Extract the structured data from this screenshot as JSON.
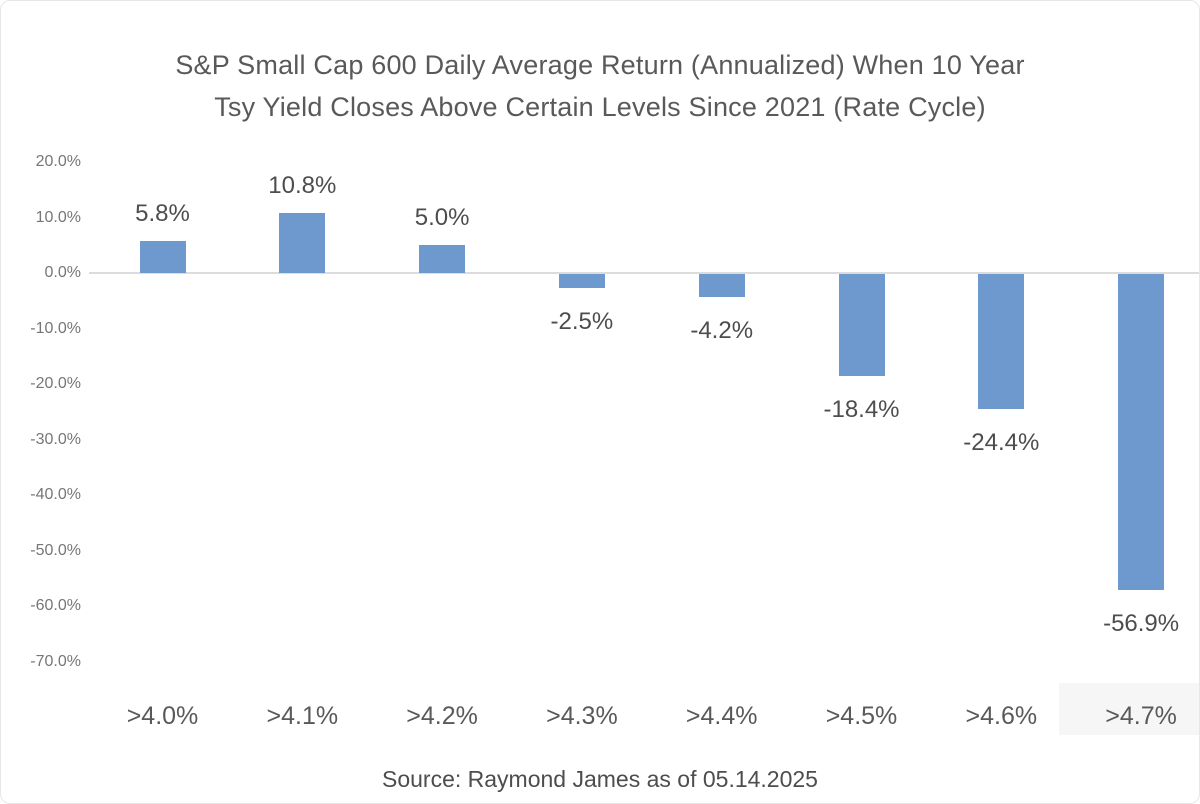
{
  "chart_data": {
    "type": "bar",
    "title": "S&P Small Cap 600 Daily Average Return (Annualized) When 10 Year\nTsy Yield Closes Above Certain Levels Since 2021 (Rate Cycle)",
    "categories": [
      ">4.0%",
      ">4.1%",
      ">4.2%",
      ">4.3%",
      ">4.4%",
      ">4.5%",
      ">4.6%",
      ">4.7%"
    ],
    "values": [
      5.8,
      10.8,
      5.0,
      -2.5,
      -4.2,
      -18.4,
      -24.4,
      -56.9
    ],
    "value_labels": [
      "5.8%",
      "10.8%",
      "5.0%",
      "-2.5%",
      "-4.2%",
      "-18.4%",
      "-24.4%",
      "-56.9%"
    ],
    "xlabel": "",
    "ylabel": "",
    "ylim": [
      -70,
      20
    ],
    "y_ticks": [
      {
        "label": "20.0%",
        "value": 20
      },
      {
        "label": "10.0%",
        "value": 10
      },
      {
        "label": "0.0%",
        "value": 0
      },
      {
        "label": "-10.0%",
        "value": -10
      },
      {
        "label": "-20.0%",
        "value": -20
      },
      {
        "label": "-30.0%",
        "value": -30
      },
      {
        "label": "-40.0%",
        "value": -40
      },
      {
        "label": "-50.0%",
        "value": -50
      },
      {
        "label": "-60.0%",
        "value": -60
      },
      {
        "label": "-70.0%",
        "value": -70
      }
    ],
    "grid": false,
    "legend": "none",
    "bar_color": "#6D99CE",
    "source_note": "Source: Raymond James as of 05.14.2025"
  },
  "colors": {
    "bar": "#6D99CE",
    "title_text": "#595959",
    "y_tick_text": "#767676",
    "x_tick_text": "#595959",
    "data_label_text": "#4d4d4d",
    "axis_line": "#dcdcdc",
    "background": "#ffffff"
  }
}
